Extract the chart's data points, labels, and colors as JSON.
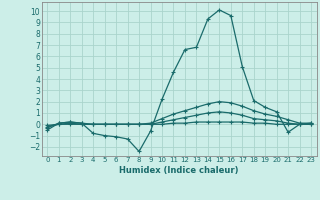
{
  "xlabel": "Humidex (Indice chaleur)",
  "ylabel": "",
  "xlim": [
    -0.5,
    23.5
  ],
  "ylim": [
    -2.8,
    10.8
  ],
  "yticks": [
    -2,
    -1,
    0,
    1,
    2,
    3,
    4,
    5,
    6,
    7,
    8,
    9,
    10
  ],
  "xticks": [
    0,
    1,
    2,
    3,
    4,
    5,
    6,
    7,
    8,
    9,
    10,
    11,
    12,
    13,
    14,
    15,
    16,
    17,
    18,
    19,
    20,
    21,
    22,
    23
  ],
  "background_color": "#cceee8",
  "grid_color": "#aad4cc",
  "line_color": "#1a6b6b",
  "spine_color": "#888888",
  "lines": [
    [
      0,
      -0.5,
      1,
      0.1,
      2,
      0.2,
      3,
      0.1,
      4,
      -0.8,
      5,
      -1.0,
      6,
      -1.1,
      7,
      -1.3,
      8,
      -2.4,
      9,
      -0.6,
      10,
      2.2,
      11,
      4.6,
      12,
      6.6,
      13,
      6.8,
      14,
      9.3,
      15,
      10.1,
      16,
      9.6,
      17,
      5.1,
      18,
      2.1,
      19,
      1.5,
      20,
      1.1,
      21,
      -0.7,
      22,
      0.0,
      23,
      0.1
    ],
    [
      0,
      -0.3,
      1,
      0.1,
      2,
      0.2,
      3,
      0.1,
      4,
      0.0,
      5,
      0.0,
      6,
      0.0,
      7,
      0.0,
      8,
      0.0,
      9,
      0.1,
      10,
      0.5,
      11,
      0.9,
      12,
      1.2,
      13,
      1.5,
      14,
      1.8,
      15,
      2.0,
      16,
      1.9,
      17,
      1.6,
      18,
      1.2,
      19,
      0.9,
      20,
      0.7,
      21,
      0.4,
      22,
      0.1,
      23,
      0.1
    ],
    [
      0,
      -0.2,
      1,
      0.0,
      2,
      0.1,
      3,
      0.0,
      4,
      0.0,
      5,
      0.0,
      6,
      0.0,
      7,
      0.0,
      8,
      0.0,
      9,
      0.0,
      10,
      0.2,
      11,
      0.4,
      12,
      0.6,
      13,
      0.8,
      14,
      1.0,
      15,
      1.1,
      16,
      1.0,
      17,
      0.8,
      18,
      0.5,
      19,
      0.4,
      20,
      0.3,
      21,
      0.1,
      22,
      0.0,
      23,
      0.0
    ],
    [
      0,
      -0.1,
      1,
      0.0,
      2,
      0.0,
      3,
      0.0,
      4,
      0.0,
      5,
      0.0,
      6,
      0.0,
      7,
      0.0,
      8,
      0.0,
      9,
      0.0,
      10,
      0.0,
      11,
      0.1,
      12,
      0.1,
      13,
      0.2,
      14,
      0.2,
      15,
      0.2,
      16,
      0.2,
      17,
      0.2,
      18,
      0.1,
      19,
      0.1,
      20,
      0.0,
      21,
      0.0,
      22,
      0.0,
      23,
      0.0
    ]
  ],
  "marker_size": 3,
  "linewidth": 0.9
}
